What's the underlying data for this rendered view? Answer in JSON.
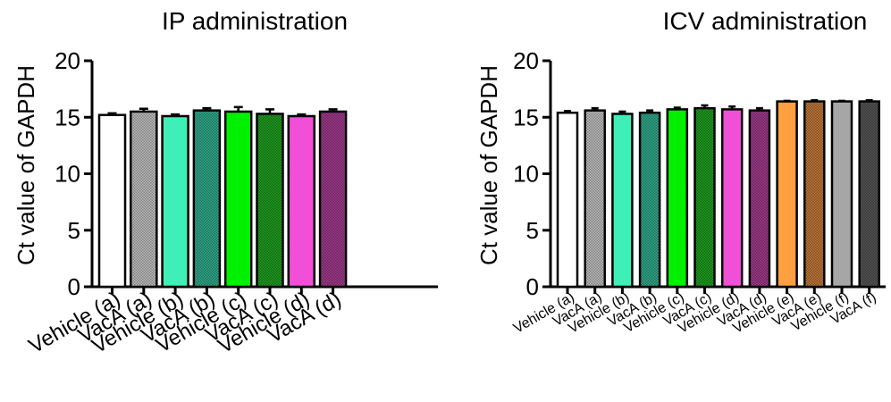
{
  "chart_data": [
    {
      "type": "bar",
      "title": "IP administration",
      "xlabel": "",
      "ylabel": "Ct value of GAPDH",
      "ylim": [
        0,
        20
      ],
      "yticks": [
        0,
        5,
        10,
        15,
        20
      ],
      "categories": [
        "Vehicle (a)",
        "VacA (a)",
        "Vehicle (b)",
        "VacA (b)",
        "Vehicle (c)",
        "VacA (c)",
        "Vehicle (d)",
        "VacA (d)"
      ],
      "values": [
        15.2,
        15.5,
        15.1,
        15.6,
        15.5,
        15.3,
        15.1,
        15.5
      ],
      "errors": [
        0.15,
        0.25,
        0.15,
        0.2,
        0.4,
        0.4,
        0.15,
        0.2
      ],
      "bar_colors": [
        "#ffffff",
        "#bfbfbf",
        "#3ef0b8",
        "#2fa98a",
        "#00f000",
        "#1f9e1f",
        "#f24fd8",
        "#a03a8c"
      ],
      "bar_patterned": [
        false,
        true,
        false,
        true,
        false,
        true,
        false,
        true
      ],
      "grid": false,
      "legend": "none"
    },
    {
      "type": "bar",
      "title": "ICV administration",
      "xlabel": "",
      "ylabel": "Ct value of GAPDH",
      "ylim": [
        0,
        20
      ],
      "yticks": [
        0,
        5,
        10,
        15,
        20
      ],
      "categories": [
        "Vehicle (a)",
        "VacA (a)",
        "Vehicle (b)",
        "VacA (b)",
        "Vehicle (c)",
        "VacA (c)",
        "Vehicle (d)",
        "VacA (d)",
        "Vehicle (e)",
        "VacA (e)",
        "Vehicle (f)",
        "VacA (f)"
      ],
      "values": [
        15.4,
        15.6,
        15.3,
        15.4,
        15.7,
        15.8,
        15.7,
        15.6,
        16.4,
        16.4,
        16.4,
        16.4
      ],
      "errors": [
        0.15,
        0.2,
        0.2,
        0.2,
        0.15,
        0.25,
        0.25,
        0.2,
        0.05,
        0.1,
        0.05,
        0.1
      ],
      "bar_colors": [
        "#ffffff",
        "#bfbfbf",
        "#3ef0b8",
        "#2fa98a",
        "#00f000",
        "#1f9e1f",
        "#f24fd8",
        "#a03a8c",
        "#ffa040",
        "#c07838",
        "#a6a6a6",
        "#555555"
      ],
      "bar_patterned": [
        false,
        true,
        false,
        true,
        false,
        true,
        false,
        true,
        false,
        true,
        false,
        true
      ],
      "grid": false,
      "legend": "none"
    }
  ]
}
